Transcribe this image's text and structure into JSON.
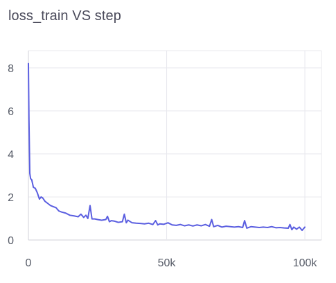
{
  "chart_data": {
    "type": "line",
    "title": "loss_train VS step",
    "xlabel": "",
    "ylabel": "",
    "xlim": [
      0,
      106000
    ],
    "ylim": [
      0,
      8.8
    ],
    "x_ticks": [
      {
        "value": 0,
        "label": "0"
      },
      {
        "value": 50000,
        "label": "50k"
      },
      {
        "value": 100000,
        "label": "100k"
      }
    ],
    "y_ticks": [
      {
        "value": 0,
        "label": "0"
      },
      {
        "value": 2,
        "label": "2"
      },
      {
        "value": 4,
        "label": "4"
      },
      {
        "value": 6,
        "label": "6"
      },
      {
        "value": 8,
        "label": "8"
      }
    ],
    "grid": true,
    "color": "#5a5ee0",
    "series": [
      {
        "name": "",
        "x": [
          0,
          200,
          500,
          800,
          1200,
          1800,
          2500,
          3200,
          4000,
          4600,
          5200,
          6000,
          7000,
          8000,
          9000,
          10000,
          11000,
          12000,
          13500,
          15000,
          16500,
          18000,
          19000,
          20000,
          20800,
          21500,
          22300,
          23000,
          24000,
          25000,
          26500,
          28000,
          28600,
          29300,
          30000,
          31000,
          32500,
          34000,
          34700,
          35400,
          36000,
          37500,
          39000,
          40500,
          42000,
          43500,
          45000,
          46000,
          46800,
          47500,
          49000,
          50500,
          52000,
          53500,
          55000,
          56500,
          58000,
          59500,
          61000,
          62500,
          64000,
          65500,
          66300,
          67000,
          68500,
          70000,
          71500,
          73000,
          74500,
          76000,
          77500,
          78200,
          79000,
          80500,
          82000,
          83500,
          85000,
          86500,
          88000,
          89500,
          91000,
          92500,
          94000,
          94600,
          95300,
          96000,
          97000,
          98000,
          99000,
          100000
        ],
        "values": [
          8.2,
          5.6,
          3.1,
          2.85,
          2.8,
          2.45,
          2.4,
          2.2,
          1.9,
          2.0,
          1.95,
          1.8,
          1.7,
          1.6,
          1.55,
          1.5,
          1.35,
          1.3,
          1.25,
          1.15,
          1.12,
          1.08,
          1.2,
          1.05,
          1.15,
          1.0,
          1.6,
          0.98,
          0.98,
          0.95,
          0.92,
          0.95,
          1.1,
          0.85,
          0.9,
          0.88,
          0.82,
          0.85,
          1.2,
          0.8,
          0.92,
          0.8,
          0.78,
          0.77,
          0.75,
          0.78,
          0.72,
          0.9,
          0.7,
          0.75,
          0.73,
          0.8,
          0.7,
          0.68,
          0.72,
          0.66,
          0.7,
          0.65,
          0.7,
          0.66,
          0.72,
          0.64,
          0.95,
          0.62,
          0.68,
          0.6,
          0.64,
          0.62,
          0.6,
          0.62,
          0.58,
          0.9,
          0.55,
          0.62,
          0.6,
          0.58,
          0.6,
          0.58,
          0.62,
          0.57,
          0.58,
          0.56,
          0.55,
          0.72,
          0.48,
          0.6,
          0.5,
          0.6,
          0.45,
          0.6
        ]
      }
    ]
  }
}
